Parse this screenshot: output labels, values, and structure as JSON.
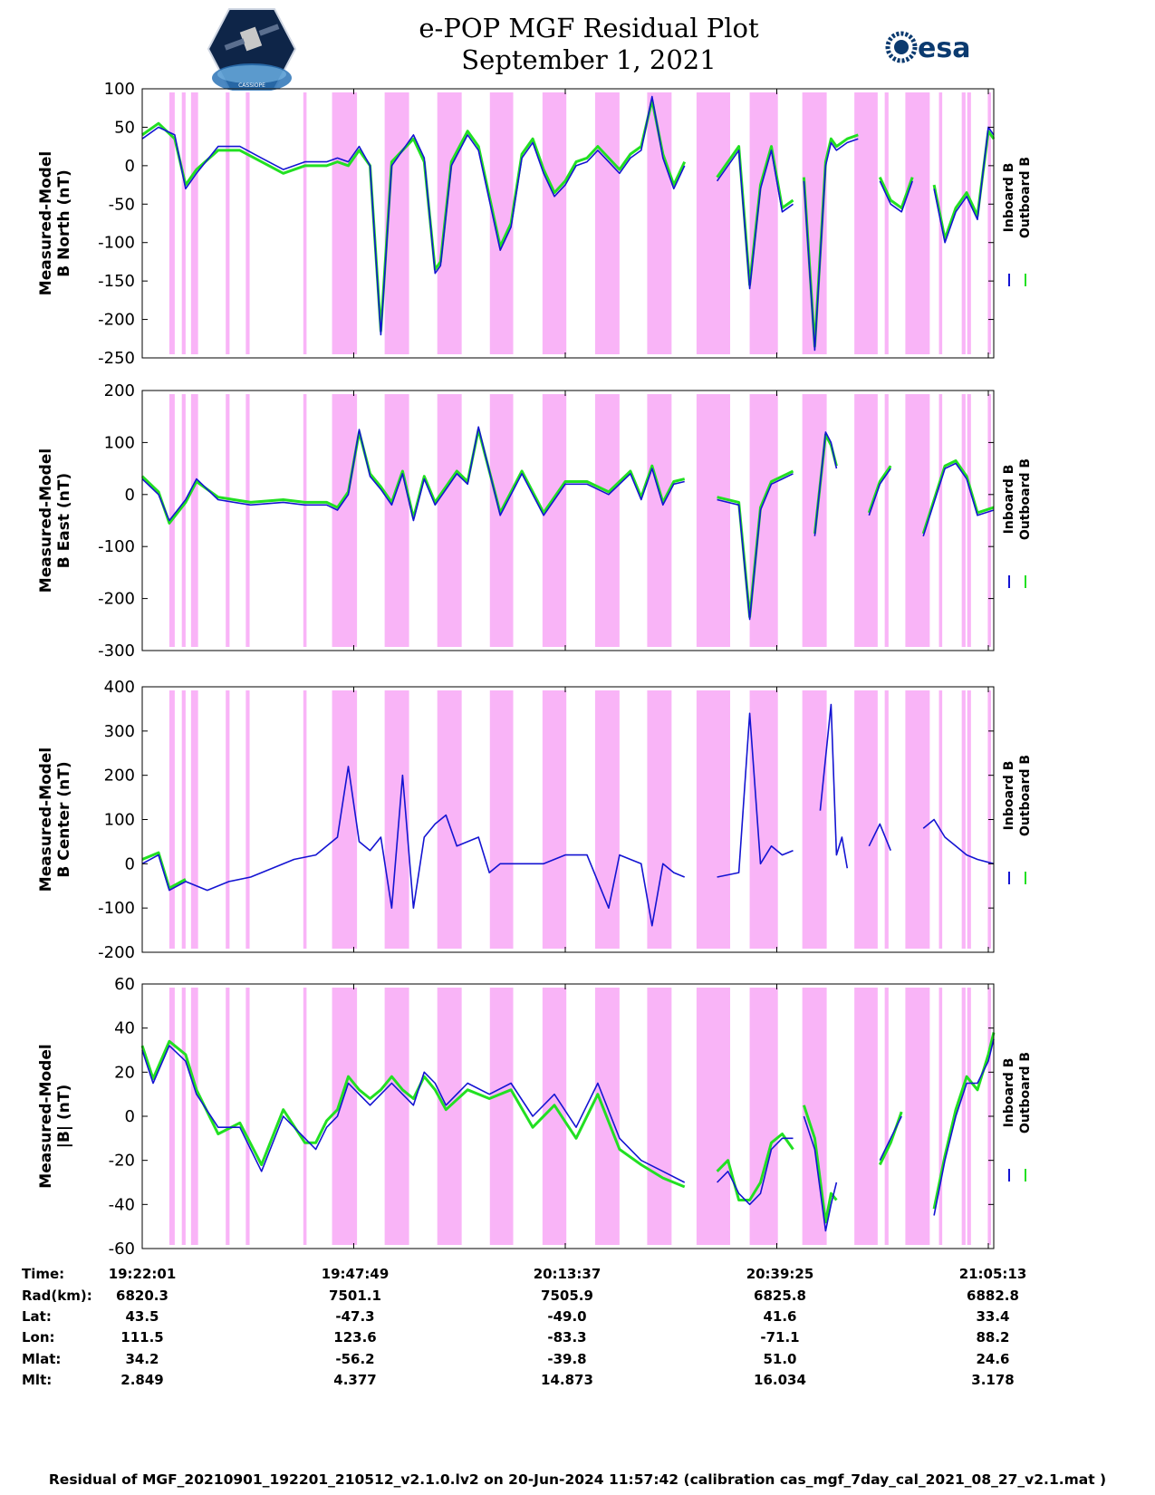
{
  "header": {
    "title_line1": "e-POP MGF Residual Plot",
    "title_line2": "September 1, 2021",
    "logo_left_text": "CASSIOPE",
    "logo_right_text": "esa"
  },
  "colors": {
    "inboard": "#1414d2",
    "outboard": "#22e022",
    "shade": "#f9b4f7"
  },
  "chart_data": [
    {
      "type": "line",
      "ylabel": [
        "Measured-Model",
        "B North (nT)"
      ],
      "ylim": [
        -250,
        100
      ],
      "yticks": [
        100,
        50,
        0,
        -50,
        -100,
        -150,
        -200,
        -250
      ],
      "legend": [
        "Inboard B",
        "Outboard B"
      ],
      "series": [
        {
          "name": "Inboard B",
          "t": [
            0,
            3,
            6,
            8,
            10,
            14,
            18,
            22,
            26,
            30,
            34,
            36,
            38,
            40,
            42,
            44,
            46,
            50,
            52,
            54,
            55,
            57,
            60,
            62,
            66,
            68,
            70,
            72,
            74,
            76,
            78,
            80,
            82,
            84,
            86,
            88,
            90,
            92,
            94,
            96,
            98,
            100,
            null,
            106,
            110,
            112,
            114,
            116,
            118,
            120,
            null,
            122,
            124,
            126,
            127,
            128,
            130,
            132,
            null,
            136,
            138,
            140,
            142,
            null,
            146,
            148,
            150,
            152,
            154,
            156,
            157
          ],
          "values": [
            35,
            50,
            40,
            -30,
            -10,
            25,
            25,
            10,
            -5,
            5,
            5,
            10,
            5,
            25,
            0,
            -220,
            0,
            40,
            10,
            -140,
            -130,
            0,
            40,
            20,
            -110,
            -80,
            10,
            30,
            -10,
            -40,
            -25,
            0,
            5,
            20,
            5,
            -10,
            10,
            20,
            90,
            10,
            -30,
            0,
            null,
            -20,
            20,
            -160,
            -30,
            20,
            -60,
            -50,
            null,
            -20,
            -240,
            0,
            30,
            20,
            30,
            35,
            null,
            -20,
            -50,
            -60,
            -20,
            null,
            -30,
            -100,
            -60,
            -40,
            -70,
            50,
            40
          ]
        },
        {
          "name": "Outboard B",
          "t": [
            0,
            3,
            6,
            8,
            10,
            14,
            18,
            22,
            26,
            30,
            34,
            36,
            38,
            40,
            42,
            44,
            46,
            50,
            52,
            54,
            55,
            57,
            60,
            62,
            66,
            68,
            70,
            72,
            74,
            76,
            78,
            80,
            82,
            84,
            86,
            88,
            90,
            92,
            94,
            96,
            98,
            100,
            null,
            106,
            110,
            112,
            114,
            116,
            118,
            120,
            null,
            122,
            124,
            126,
            127,
            128,
            130,
            132,
            null,
            136,
            138,
            140,
            142,
            null,
            146,
            148,
            150,
            152,
            154,
            156,
            157
          ],
          "values": [
            40,
            55,
            35,
            -25,
            -5,
            20,
            20,
            5,
            -10,
            0,
            0,
            5,
            0,
            20,
            0,
            -215,
            5,
            35,
            5,
            -135,
            -125,
            5,
            45,
            25,
            -105,
            -75,
            15,
            35,
            -5,
            -35,
            -20,
            5,
            10,
            25,
            10,
            -5,
            15,
            25,
            85,
            15,
            -25,
            5,
            null,
            -15,
            25,
            -155,
            -25,
            25,
            -55,
            -45,
            null,
            -15,
            -235,
            5,
            35,
            25,
            35,
            40,
            null,
            -15,
            -45,
            -55,
            -15,
            null,
            -25,
            -95,
            -55,
            -35,
            -65,
            45,
            35
          ]
        }
      ]
    },
    {
      "type": "line",
      "ylabel": [
        "Measured-Model",
        "B East (nT)"
      ],
      "ylim": [
        -300,
        200
      ],
      "yticks": [
        200,
        100,
        0,
        -100,
        -200,
        -300
      ],
      "legend": [
        "Inboard B",
        "Outboard B"
      ],
      "series": [
        {
          "name": "Inboard B",
          "t": [
            0,
            3,
            5,
            8,
            10,
            14,
            20,
            26,
            30,
            34,
            36,
            38,
            40,
            42,
            44,
            46,
            48,
            50,
            52,
            54,
            58,
            60,
            62,
            66,
            70,
            74,
            78,
            82,
            86,
            90,
            92,
            94,
            96,
            98,
            100,
            null,
            106,
            110,
            112,
            114,
            116,
            118,
            120,
            null,
            124,
            126,
            127,
            128,
            null,
            134,
            136,
            138,
            null,
            144,
            148,
            150,
            152,
            154,
            157
          ],
          "values": [
            30,
            0,
            -50,
            -10,
            30,
            -10,
            -20,
            -15,
            -20,
            -20,
            -30,
            0,
            125,
            35,
            10,
            -20,
            40,
            -50,
            30,
            -20,
            40,
            20,
            130,
            -40,
            40,
            -40,
            20,
            20,
            0,
            40,
            -10,
            50,
            -20,
            20,
            25,
            null,
            -10,
            -20,
            -240,
            -30,
            20,
            30,
            40,
            null,
            -80,
            120,
            100,
            50,
            null,
            -40,
            20,
            50,
            null,
            -80,
            50,
            60,
            30,
            -40,
            -30
          ]
        },
        {
          "name": "Outboard B",
          "t": [
            0,
            3,
            5,
            8,
            10,
            14,
            20,
            26,
            30,
            34,
            36,
            38,
            40,
            42,
            44,
            46,
            48,
            50,
            52,
            54,
            58,
            60,
            62,
            66,
            70,
            74,
            78,
            82,
            86,
            90,
            92,
            94,
            96,
            98,
            100,
            null,
            106,
            110,
            112,
            114,
            116,
            118,
            120,
            null,
            124,
            126,
            127,
            128,
            null,
            134,
            136,
            138,
            null,
            144,
            148,
            150,
            152,
            154,
            157
          ],
          "values": [
            35,
            5,
            -55,
            -15,
            25,
            -5,
            -15,
            -10,
            -15,
            -15,
            -25,
            5,
            120,
            40,
            15,
            -15,
            45,
            -45,
            35,
            -15,
            45,
            25,
            125,
            -35,
            45,
            -35,
            25,
            25,
            5,
            45,
            -5,
            55,
            -15,
            25,
            30,
            null,
            -5,
            -15,
            -235,
            -25,
            25,
            35,
            45,
            null,
            -75,
            115,
            95,
            55,
            null,
            -35,
            25,
            55,
            null,
            -75,
            55,
            65,
            35,
            -35,
            -25
          ]
        }
      ]
    },
    {
      "type": "line",
      "ylabel": [
        "Measured-Model",
        "B Center (nT)"
      ],
      "ylim": [
        -200,
        400
      ],
      "yticks": [
        400,
        300,
        200,
        100,
        0,
        -100,
        -200
      ],
      "legend": [
        "Inboard B",
        "Outboard B"
      ],
      "series": [
        {
          "name": "Inboard B",
          "t": [
            0,
            3,
            5,
            8,
            12,
            16,
            20,
            24,
            28,
            32,
            34,
            36,
            38,
            40,
            42,
            44,
            46,
            48,
            50,
            52,
            54,
            56,
            58,
            62,
            64,
            66,
            70,
            74,
            78,
            82,
            86,
            88,
            90,
            92,
            94,
            96,
            98,
            100,
            null,
            106,
            110,
            112,
            114,
            116,
            118,
            120,
            null,
            125,
            127,
            128,
            129,
            130,
            null,
            134,
            136,
            138,
            null,
            144,
            146,
            148,
            150,
            152,
            154,
            157
          ],
          "values": [
            0,
            20,
            -60,
            -40,
            -60,
            -40,
            -30,
            -10,
            10,
            20,
            40,
            60,
            220,
            50,
            30,
            60,
            -100,
            200,
            -100,
            60,
            90,
            110,
            40,
            60,
            -20,
            0,
            0,
            0,
            20,
            20,
            -100,
            20,
            10,
            0,
            -140,
            0,
            -20,
            -30,
            null,
            -30,
            -20,
            340,
            0,
            40,
            20,
            30,
            null,
            120,
            360,
            20,
            60,
            -10,
            null,
            40,
            90,
            30,
            null,
            80,
            100,
            60,
            40,
            20,
            10,
            0
          ]
        },
        {
          "name": "Outboard B",
          "t": [
            0,
            3,
            5,
            8
          ],
          "values": [
            10,
            25,
            -55,
            -35
          ]
        }
      ]
    },
    {
      "type": "line",
      "ylabel": [
        "Measured-Model",
        "|B| (nT)"
      ],
      "ylim": [
        -60,
        60
      ],
      "yticks": [
        60,
        40,
        20,
        0,
        -20,
        -40,
        -60
      ],
      "legend": [
        "Inboard B",
        "Outboard B"
      ],
      "series": [
        {
          "name": "Inboard B",
          "t": [
            0,
            2,
            5,
            8,
            10,
            14,
            18,
            22,
            26,
            30,
            32,
            34,
            36,
            38,
            40,
            42,
            44,
            46,
            48,
            50,
            52,
            54,
            56,
            60,
            64,
            68,
            72,
            76,
            80,
            84,
            88,
            92,
            96,
            100,
            null,
            106,
            108,
            110,
            112,
            114,
            116,
            118,
            120,
            null,
            122,
            124,
            126,
            127,
            128,
            null,
            136,
            138,
            140,
            null,
            146,
            148,
            150,
            152,
            154,
            156,
            157
          ],
          "values": [
            30,
            15,
            32,
            25,
            10,
            -5,
            -5,
            -25,
            0,
            -10,
            -15,
            -5,
            0,
            15,
            10,
            5,
            10,
            15,
            10,
            5,
            20,
            15,
            5,
            15,
            10,
            15,
            0,
            10,
            -5,
            15,
            -10,
            -20,
            -25,
            -30,
            null,
            -30,
            -25,
            -35,
            -40,
            -35,
            -15,
            -10,
            -10,
            null,
            0,
            -15,
            -52,
            -40,
            -30,
            null,
            -20,
            -10,
            0,
            null,
            -45,
            -20,
            0,
            15,
            15,
            25,
            35
          ]
        },
        {
          "name": "Outboard B",
          "t": [
            0,
            2,
            5,
            8,
            10,
            14,
            18,
            22,
            26,
            30,
            32,
            34,
            36,
            38,
            40,
            42,
            44,
            46,
            48,
            50,
            52,
            54,
            56,
            60,
            64,
            68,
            72,
            76,
            80,
            84,
            88,
            92,
            96,
            100,
            null,
            106,
            108,
            110,
            112,
            114,
            116,
            118,
            120,
            null,
            122,
            124,
            126,
            127,
            128,
            null,
            136,
            138,
            140,
            null,
            146,
            148,
            150,
            152,
            154,
            156,
            157
          ],
          "values": [
            32,
            17,
            34,
            28,
            12,
            -8,
            -3,
            -22,
            3,
            -12,
            -12,
            -2,
            3,
            18,
            12,
            8,
            12,
            18,
            12,
            8,
            18,
            12,
            3,
            12,
            8,
            12,
            -5,
            5,
            -10,
            10,
            -15,
            -22,
            -28,
            -32,
            null,
            -25,
            -20,
            -38,
            -38,
            -30,
            -12,
            -8,
            -15,
            null,
            5,
            -10,
            -48,
            -35,
            -38,
            null,
            -22,
            -12,
            2,
            null,
            -42,
            -18,
            3,
            18,
            12,
            28,
            38
          ]
        }
      ]
    }
  ],
  "shade_bands_t": [
    [
      5,
      6
    ],
    [
      7.3,
      8
    ],
    [
      9,
      10.3
    ],
    [
      15.4,
      16.1
    ],
    [
      19.1,
      19.8
    ],
    [
      29.7,
      30.3
    ],
    [
      35,
      39.6
    ],
    [
      44.7,
      49.2
    ],
    [
      54.4,
      58.9
    ],
    [
      64.1,
      68.4
    ],
    [
      73.8,
      78.2
    ],
    [
      83.5,
      88
    ],
    [
      93.1,
      97.6
    ],
    [
      102.2,
      108.4
    ],
    [
      112,
      117.2
    ],
    [
      121.7,
      126.2
    ],
    [
      131.3,
      135.6
    ],
    [
      136.9,
      137.6
    ],
    [
      140.7,
      145.2
    ],
    [
      146.9,
      147.5
    ],
    [
      151.1,
      151.8
    ],
    [
      152.1,
      152.8
    ],
    [
      155.9,
      156.5
    ]
  ],
  "x_axis": {
    "tmax": 157,
    "tick_t": [
      0,
      39,
      78,
      117,
      156
    ]
  },
  "info_table": {
    "labels": [
      "Time:",
      "Rad(km):",
      "Lat:",
      "Lon:",
      "Mlat:",
      "Mlt:"
    ],
    "columns": [
      [
        "19:22:01",
        "6820.3",
        "43.5",
        "111.5",
        "34.2",
        "2.849"
      ],
      [
        "19:47:49",
        "7501.1",
        "-47.3",
        "123.6",
        "-56.2",
        "4.377"
      ],
      [
        "20:13:37",
        "7505.9",
        "-49.0",
        "-83.3",
        "-39.8",
        "14.873"
      ],
      [
        "20:39:25",
        "6825.8",
        "41.6",
        "-71.1",
        "51.0",
        "16.034"
      ],
      [
        "21:05:13",
        "6882.8",
        "33.4",
        "88.2",
        "24.6",
        "3.178"
      ]
    ]
  },
  "footer": "Residual of MGF_20210901_192201_210512_v2.1.0.lv2 on 20-Jun-2024 11:57:42 (calibration cas_mgf_7day_cal_2021_08_27_v2.1.mat )"
}
